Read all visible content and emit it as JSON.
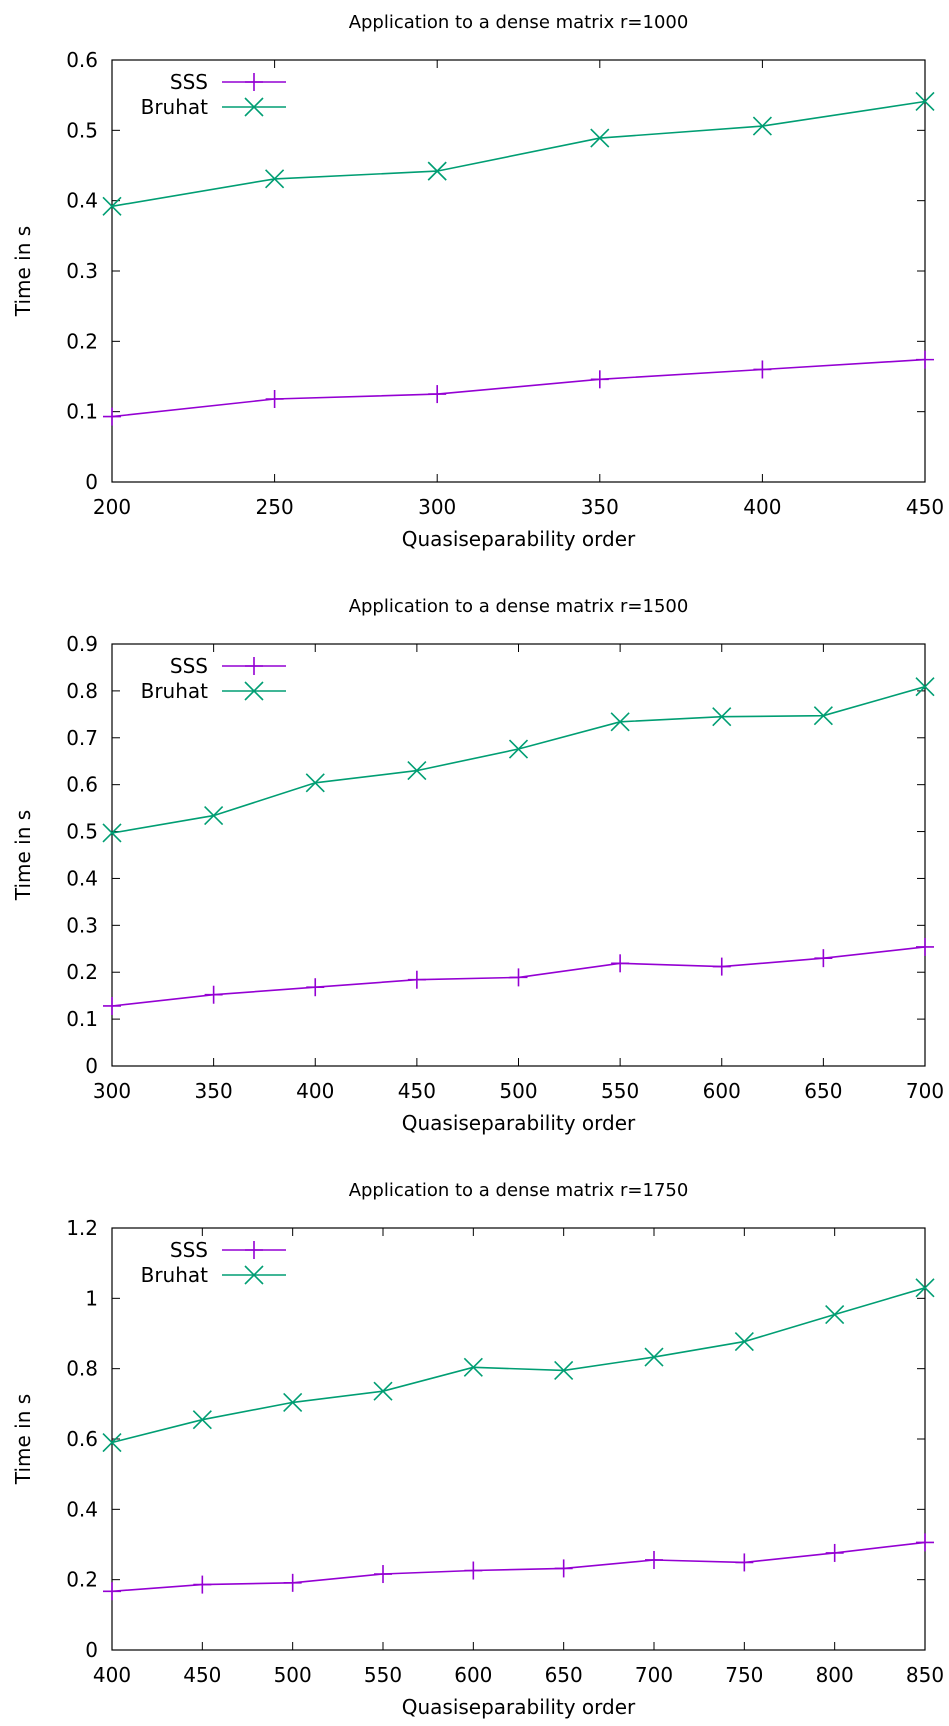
{
  "chart_data": [
    {
      "type": "line",
      "title": "Application to a dense matrix r=1000",
      "xlabel": "Quasiseparability order",
      "ylabel": "Time in s",
      "xlim": [
        200,
        450
      ],
      "ylim": [
        0,
        0.6
      ],
      "xticks": [
        200,
        250,
        300,
        350,
        400,
        450
      ],
      "yticks": [
        0,
        0.1,
        0.2,
        0.3,
        0.4,
        0.5,
        0.6
      ],
      "grid": false,
      "legend_position": "top-left",
      "x": [
        200,
        250,
        300,
        350,
        400,
        450
      ],
      "series": [
        {
          "name": "SSS",
          "marker": "plus",
          "color": "#9400d3",
          "values": [
            0.093,
            0.118,
            0.125,
            0.146,
            0.16,
            0.174
          ]
        },
        {
          "name": "Bruhat",
          "marker": "cross",
          "color": "#009e73",
          "values": [
            0.392,
            0.431,
            0.442,
            0.489,
            0.506,
            0.541
          ]
        }
      ]
    },
    {
      "type": "line",
      "title": "Application to a dense matrix r=1500",
      "xlabel": "Quasiseparability order",
      "ylabel": "Time in s",
      "xlim": [
        300,
        700
      ],
      "ylim": [
        0,
        0.9
      ],
      "xticks": [
        300,
        350,
        400,
        450,
        500,
        550,
        600,
        650,
        700
      ],
      "yticks": [
        0,
        0.1,
        0.2,
        0.3,
        0.4,
        0.5,
        0.6,
        0.7,
        0.8,
        0.9
      ],
      "grid": false,
      "legend_position": "top-left",
      "x": [
        300,
        350,
        400,
        450,
        500,
        550,
        600,
        650,
        700
      ],
      "series": [
        {
          "name": "SSS",
          "marker": "plus",
          "color": "#9400d3",
          "values": [
            0.128,
            0.152,
            0.168,
            0.184,
            0.189,
            0.219,
            0.212,
            0.23,
            0.254
          ]
        },
        {
          "name": "Bruhat",
          "marker": "cross",
          "color": "#009e73",
          "values": [
            0.497,
            0.534,
            0.604,
            0.63,
            0.676,
            0.734,
            0.745,
            0.747,
            0.809
          ]
        }
      ]
    },
    {
      "type": "line",
      "title": "Application to a dense matrix r=1750",
      "xlabel": "Quasiseparability order",
      "ylabel": "Time in s",
      "xlim": [
        400,
        850
      ],
      "ylim": [
        0,
        1.2
      ],
      "xticks": [
        400,
        450,
        500,
        550,
        600,
        650,
        700,
        750,
        800,
        850
      ],
      "yticks": [
        0,
        0.2,
        0.4,
        0.6,
        0.8,
        1,
        1.2
      ],
      "grid": false,
      "legend_position": "top-left",
      "x": [
        400,
        450,
        500,
        550,
        600,
        650,
        700,
        750,
        800,
        850
      ],
      "series": [
        {
          "name": "SSS",
          "marker": "plus",
          "color": "#9400d3",
          "values": [
            0.167,
            0.186,
            0.191,
            0.216,
            0.226,
            0.232,
            0.256,
            0.249,
            0.276,
            0.306
          ]
        },
        {
          "name": "Bruhat",
          "marker": "cross",
          "color": "#009e73",
          "values": [
            0.59,
            0.655,
            0.704,
            0.736,
            0.804,
            0.795,
            0.833,
            0.877,
            0.954,
            1.03
          ]
        }
      ]
    }
  ]
}
